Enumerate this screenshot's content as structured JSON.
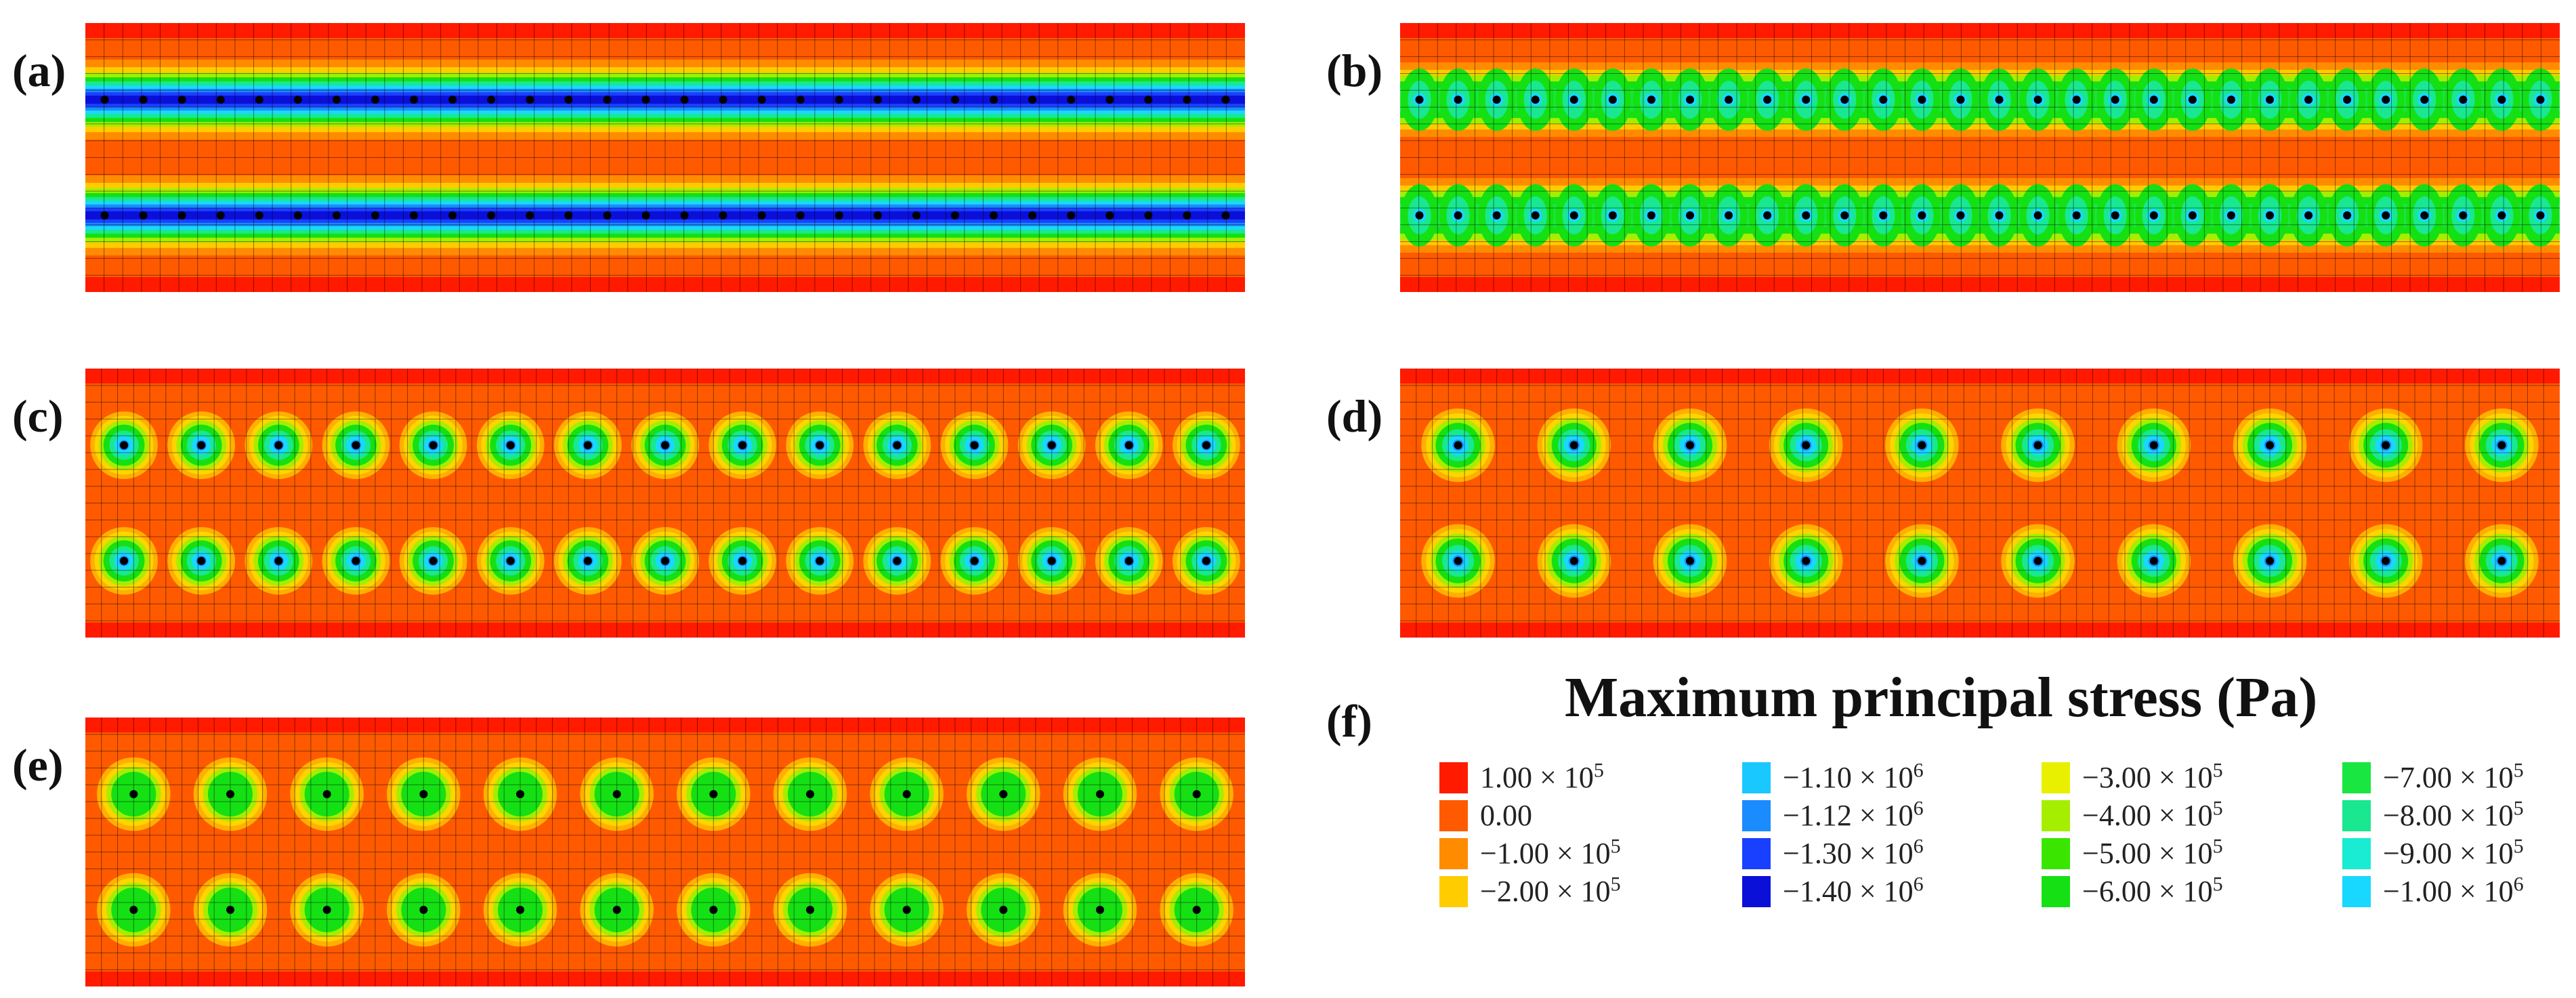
{
  "panels": [
    {
      "id": "a",
      "label": "(a)",
      "pattern": "bands",
      "columns": 30
    },
    {
      "id": "b",
      "label": "(b)",
      "pattern": "bands-weak",
      "columns": 30
    },
    {
      "id": "c",
      "label": "(c)",
      "pattern": "spots",
      "columns": 15
    },
    {
      "id": "d",
      "label": "(d)",
      "pattern": "spots",
      "columns": 10
    },
    {
      "id": "e",
      "label": "(e)",
      "pattern": "spots-weak",
      "columns": 12
    }
  ],
  "legend": {
    "label": "(f)",
    "title": "Maximum principal stress (Pa)",
    "columns": [
      [
        {
          "mantissa": "1.00",
          "exp": "5",
          "color": "#ff1a00"
        },
        {
          "mantissa": "0.00",
          "exp": "",
          "color": "#ff5a00"
        },
        {
          "mantissa": "−1.00",
          "exp": "5",
          "color": "#ff8c00"
        },
        {
          "mantissa": "−2.00",
          "exp": "5",
          "color": "#ffcc00"
        }
      ],
      [
        {
          "mantissa": "−1.10",
          "exp": "6",
          "color": "#19c8ff"
        },
        {
          "mantissa": "−1.12",
          "exp": "6",
          "color": "#1a8cff"
        },
        {
          "mantissa": "−1.30",
          "exp": "6",
          "color": "#1a40ff"
        },
        {
          "mantissa": "−1.40",
          "exp": "6",
          "color": "#0a10d8"
        }
      ],
      [
        {
          "mantissa": "−3.00",
          "exp": "5",
          "color": "#e8f000"
        },
        {
          "mantissa": "−4.00",
          "exp": "5",
          "color": "#a6ee00"
        },
        {
          "mantissa": "−5.00",
          "exp": "5",
          "color": "#3ae600"
        },
        {
          "mantissa": "−6.00",
          "exp": "5",
          "color": "#14e014"
        }
      ],
      [
        {
          "mantissa": "−7.00",
          "exp": "5",
          "color": "#19e640"
        },
        {
          "mantissa": "−8.00",
          "exp": "5",
          "color": "#19e890"
        },
        {
          "mantissa": "−9.00",
          "exp": "5",
          "color": "#19ecd2"
        },
        {
          "mantissa": "−1.00",
          "exp": "6",
          "color": "#19d8ff"
        }
      ]
    ]
  }
}
